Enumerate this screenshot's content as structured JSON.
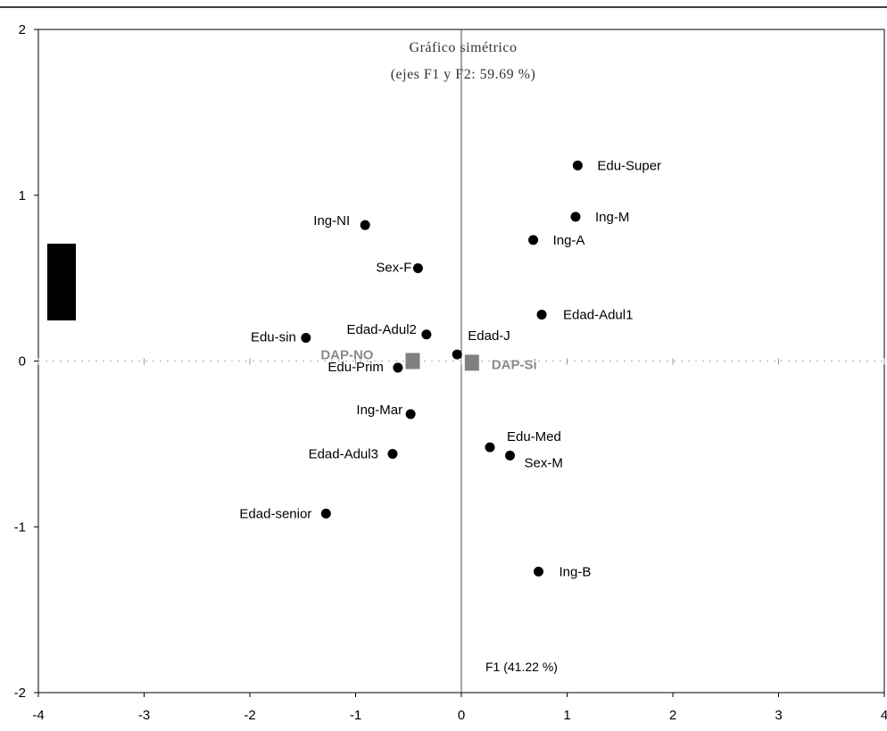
{
  "chart_data": {
    "type": "scatter",
    "title": "Gráfico simétrico",
    "subtitle": "(ejes F1 y F2: 59.69 %)",
    "xlabel": "F1 (41.22 %)",
    "ylabel": "",
    "xlim": [
      -4,
      4
    ],
    "ylim": [
      -2,
      2
    ],
    "x_ticks": [
      "-4",
      "-3",
      "-2",
      "-1",
      "0",
      "1",
      "2",
      "3",
      "4"
    ],
    "y_ticks": [
      "2",
      "1",
      "0",
      "-1",
      "-2"
    ],
    "grid": false,
    "legend": "left",
    "series": [
      {
        "marker": "circle",
        "color": "#000000",
        "points": [
          {
            "label": "Edu-Super",
            "x": 1.1,
            "y": 1.18
          },
          {
            "label": "Ing-M",
            "x": 1.08,
            "y": 0.87
          },
          {
            "label": "Ing-A",
            "x": 0.68,
            "y": 0.73
          },
          {
            "label": "Ing-NI",
            "x": -0.91,
            "y": 0.82
          },
          {
            "label": "Sex-F",
            "x": -0.41,
            "y": 0.56
          },
          {
            "label": "Edad-Adul1",
            "x": 0.76,
            "y": 0.28
          },
          {
            "label": "Edad-Adul2",
            "x": -0.33,
            "y": 0.16
          },
          {
            "label": "Edu-sin",
            "x": -1.47,
            "y": 0.14
          },
          {
            "label": "Edad-J",
            "x": -0.04,
            "y": 0.04
          },
          {
            "label": "Edu-Prim",
            "x": -0.6,
            "y": -0.04
          },
          {
            "label": "Ing-Mar",
            "x": -0.48,
            "y": -0.32
          },
          {
            "label": "Edu-Med",
            "x": 0.27,
            "y": -0.52
          },
          {
            "label": "Sex-M",
            "x": 0.46,
            "y": -0.57
          },
          {
            "label": "Edad-Adul3",
            "x": -0.65,
            "y": -0.56
          },
          {
            "label": "Edad-senior",
            "x": -1.28,
            "y": -0.92
          },
          {
            "label": "Ing-B",
            "x": 0.73,
            "y": -1.27
          }
        ]
      },
      {
        "marker": "square",
        "color": "#808080",
        "points": [
          {
            "label": "DAP-NO",
            "x": -0.46,
            "y": 0.0
          },
          {
            "label": "DAP-Si",
            "x": 0.1,
            "y": -0.01
          }
        ]
      }
    ]
  }
}
